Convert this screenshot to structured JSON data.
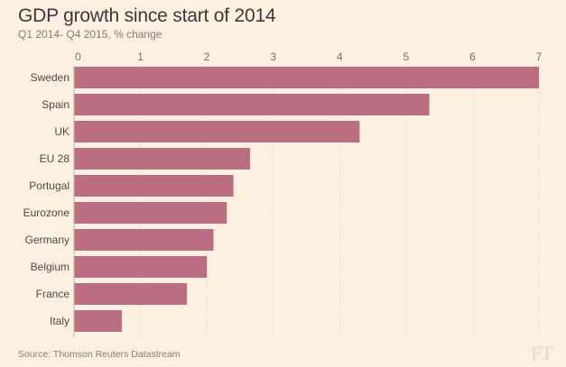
{
  "chart_data": {
    "type": "bar",
    "orientation": "horizontal",
    "title": "GDP growth since start of 2014",
    "subtitle": "Q1 2014- Q4 2015, % change",
    "categories": [
      "Sweden",
      "Spain",
      "UK",
      "EU 28",
      "Portugal",
      "Eurozone",
      "Germany",
      "Belgium",
      "France",
      "Italy"
    ],
    "values": [
      7.0,
      5.35,
      4.3,
      2.65,
      2.4,
      2.3,
      2.1,
      2.0,
      1.7,
      0.72
    ],
    "xlim": [
      0,
      7
    ],
    "xticks": [
      "0",
      "1",
      "2",
      "3",
      "4",
      "5",
      "6",
      "7"
    ],
    "xlabel": "",
    "ylabel": "",
    "grid": true,
    "bar_color": "#bb6d82",
    "grid_color": "#d9cfc4"
  },
  "source": "Source: Thomson Reuters Datastream",
  "logo": "FT"
}
